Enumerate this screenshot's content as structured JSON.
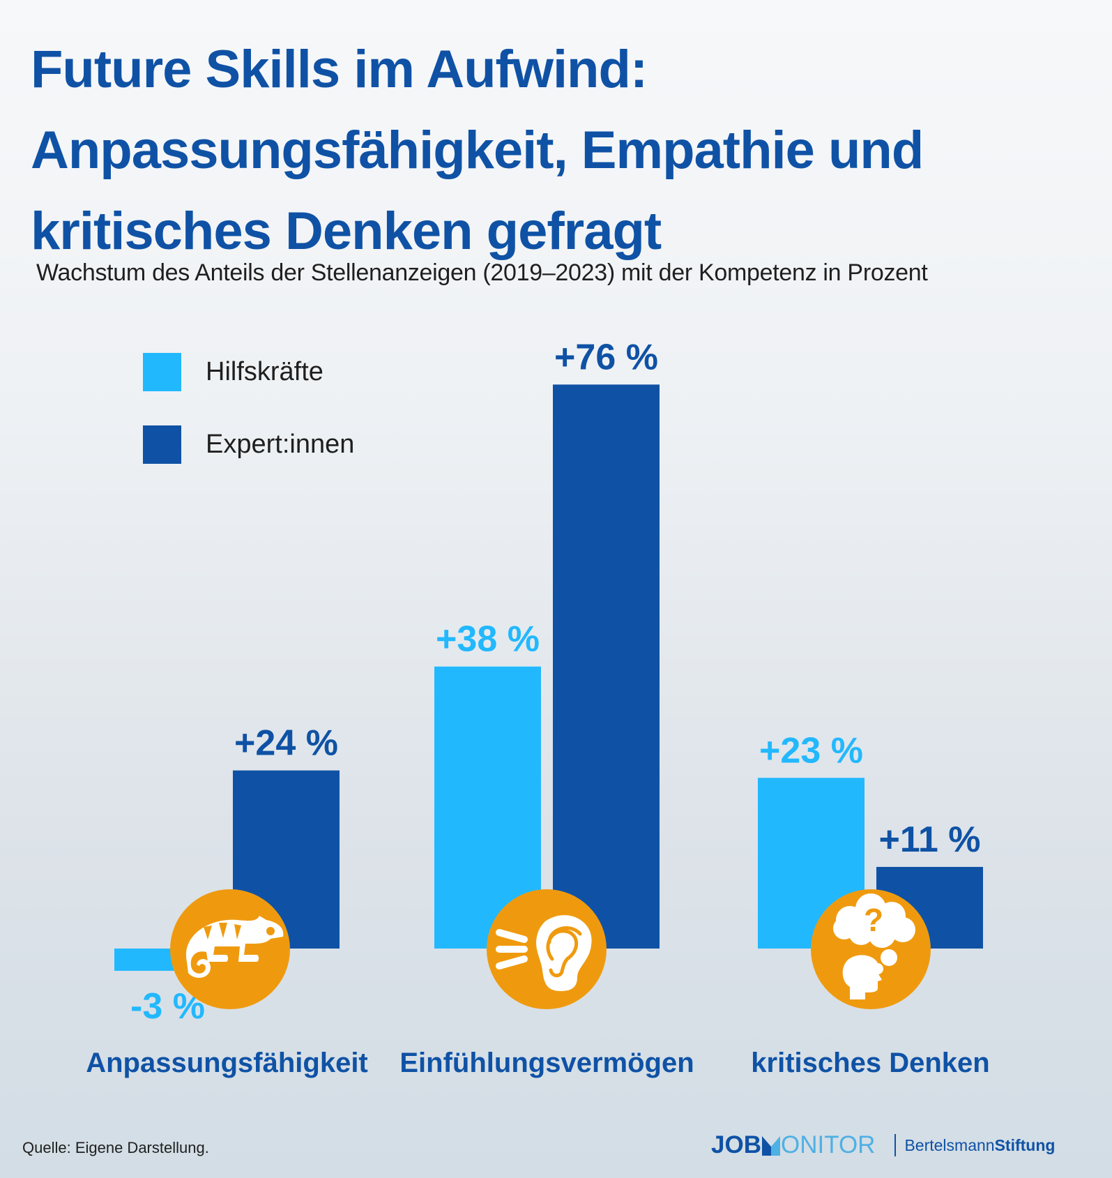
{
  "header": {
    "title_lines": [
      "Future Skills im Aufwind:",
      "Anpassungsfähigkeit, Empathie und",
      "kritisches Denken gefragt"
    ],
    "subtitle": "Wachstum des Anteils der Stellenanzeigen (2019–2023) mit der Kompetenz in Prozent"
  },
  "legend": [
    {
      "label": "Hilfskräfte",
      "color": "#22b8fe"
    },
    {
      "label": "Expert:innen",
      "color": "#0f52a5"
    }
  ],
  "chart_data": {
    "type": "bar",
    "title": "Future Skills im Aufwind: Anpassungsfähigkeit, Empathie und kritisches Denken gefragt",
    "subtitle": "Wachstum des Anteils der Stellenanzeigen (2019–2023) mit der Kompetenz in Prozent",
    "xlabel": "",
    "ylabel": "",
    "categories": [
      "Anpassungsfähigkeit",
      "Einfühlungsvermögen",
      "kritisches Denken"
    ],
    "category_icons": [
      "chameleon-icon",
      "listening-ear-icon",
      "thinking-head-icon"
    ],
    "series": [
      {
        "name": "Hilfskräfte",
        "color": "#22b8fe",
        "values": [
          -3,
          38,
          23
        ],
        "labels": [
          "-3 %",
          "+38 %",
          "+23 %"
        ]
      },
      {
        "name": "Expert:innen",
        "color": "#0f52a5",
        "values": [
          24,
          76,
          11
        ],
        "labels": [
          "+24 %",
          "+76 %",
          "+11 %"
        ]
      }
    ],
    "ylim": [
      -3,
      76
    ],
    "grid": false,
    "axes_visible": false,
    "legend_position": "top-left"
  },
  "colors": {
    "title": "#0f52a5",
    "icon_circle": "#ef9a0e",
    "icon_glyph": "#ffffff",
    "category_label": "#0f52a5"
  },
  "footer": {
    "source": "Quelle: Eigene Darstellung.",
    "logo_jobmonitor_a": "JOB",
    "logo_jobmonitor_b": "ONITOR",
    "logo_bertelsmann_a": "Bertelsmann",
    "logo_bertelsmann_b": "Stiftung"
  }
}
